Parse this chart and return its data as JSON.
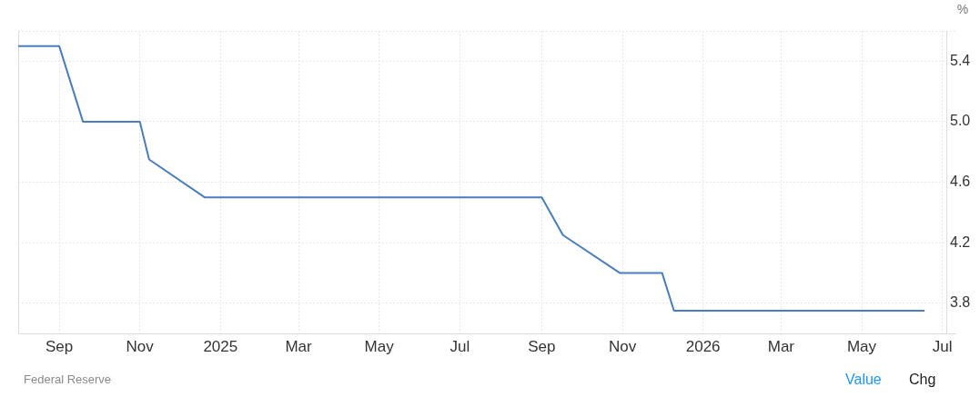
{
  "chart_data": {
    "type": "line",
    "ylabel": "%",
    "x": [
      "2024-08-01",
      "2024-09-01",
      "2024-09-19",
      "2024-11-01",
      "2024-11-08",
      "2024-12-20",
      "2025-09-01",
      "2025-09-17",
      "2025-10-30",
      "2025-12-01",
      "2025-12-10",
      "2026-06-17"
    ],
    "values": [
      5.5,
      5.5,
      5.0,
      5.0,
      4.75,
      4.5,
      4.5,
      4.25,
      4.0,
      4.0,
      3.75,
      3.75
    ],
    "color": "#4a7ebb",
    "xlim": [
      "2024-08-01",
      "2026-07-04"
    ],
    "xticks": [
      {
        "value": "2024-09-01",
        "label": "Sep"
      },
      {
        "value": "2024-11-01",
        "label": "Nov"
      },
      {
        "value": "2025-01-01",
        "label": "2025"
      },
      {
        "value": "2025-03-01",
        "label": "Mar"
      },
      {
        "value": "2025-05-01",
        "label": "May"
      },
      {
        "value": "2025-07-01",
        "label": "Jul"
      },
      {
        "value": "2025-09-01",
        "label": "Sep"
      },
      {
        "value": "2025-11-01",
        "label": "Nov"
      },
      {
        "value": "2026-01-01",
        "label": "2026"
      },
      {
        "value": "2026-03-01",
        "label": "Mar"
      },
      {
        "value": "2026-05-01",
        "label": "May"
      },
      {
        "value": "2026-07-01",
        "label": "Jul"
      }
    ],
    "ylim": [
      3.6,
      5.6
    ],
    "yticks": [
      3.8,
      4.2,
      4.6,
      {
        "value": 5,
        "label": "5.0"
      },
      5.4
    ],
    "grid": true,
    "legend": false,
    "marker": "none",
    "annotations": [
      "Federal Reserve",
      "Value",
      "Chg"
    ]
  }
}
